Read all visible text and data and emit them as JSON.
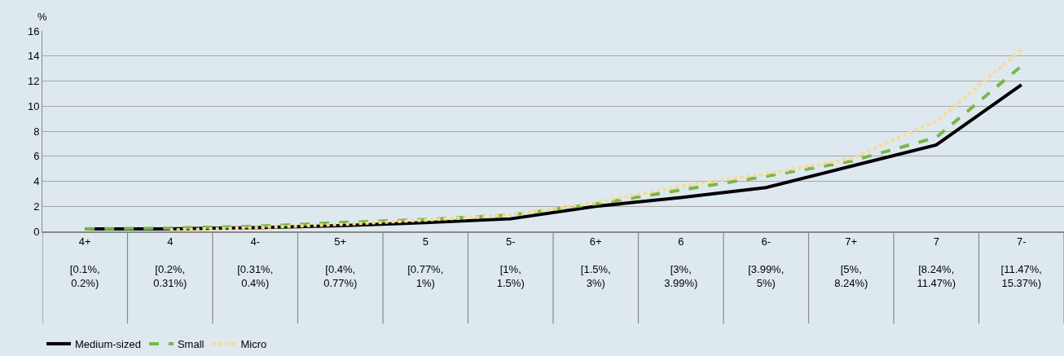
{
  "chart_data": {
    "type": "line",
    "ylabel": "%",
    "categories": [
      "4+\n\n[0.1%,\n0.2%)",
      "4\n\n[0.2%,\n0.31%)",
      "4-\n\n[0.31%,\n0.4%)",
      "5+\n\n[0.4%,\n0.77%)",
      "5\n\n[0.77%,\n1%)",
      "5-\n\n[1%,\n1.5%)",
      "6+\n\n[1.5%,\n3%)",
      "6\n\n[3%,\n3.99%)",
      "6-\n\n[3.99%,\n5%)",
      "7+\n\n[5%,\n8.24%)",
      "7\n\n[8.24%,\n11.47%)",
      "7-\n\n[11.47%,\n15.37%)"
    ],
    "series": [
      {
        "name": "Medium-sized",
        "color": "#000000",
        "line_style": "solid",
        "values": [
          0.2,
          0.2,
          0.3,
          0.45,
          0.7,
          1.0,
          2.0,
          2.7,
          3.5,
          5.2,
          6.9,
          11.7
        ]
      },
      {
        "name": "Small",
        "color": "#7ab648",
        "line_style": "dashed",
        "values": [
          0.2,
          0.25,
          0.4,
          0.7,
          0.95,
          1.3,
          2.2,
          3.3,
          4.4,
          5.6,
          7.5,
          13.2
        ]
      },
      {
        "name": "Micro",
        "color": "#fdd98a",
        "line_style": "dotted",
        "values": [
          null,
          0.1,
          0.3,
          0.55,
          0.9,
          1.3,
          2.3,
          3.6,
          4.6,
          5.8,
          8.8,
          14.5
        ]
      }
    ],
    "ylim": [
      0,
      16
    ],
    "yticks": [
      0,
      2,
      4,
      6,
      8,
      10,
      12,
      14,
      16
    ],
    "grid": "y",
    "legend": "bottom left",
    "marker": "none"
  }
}
